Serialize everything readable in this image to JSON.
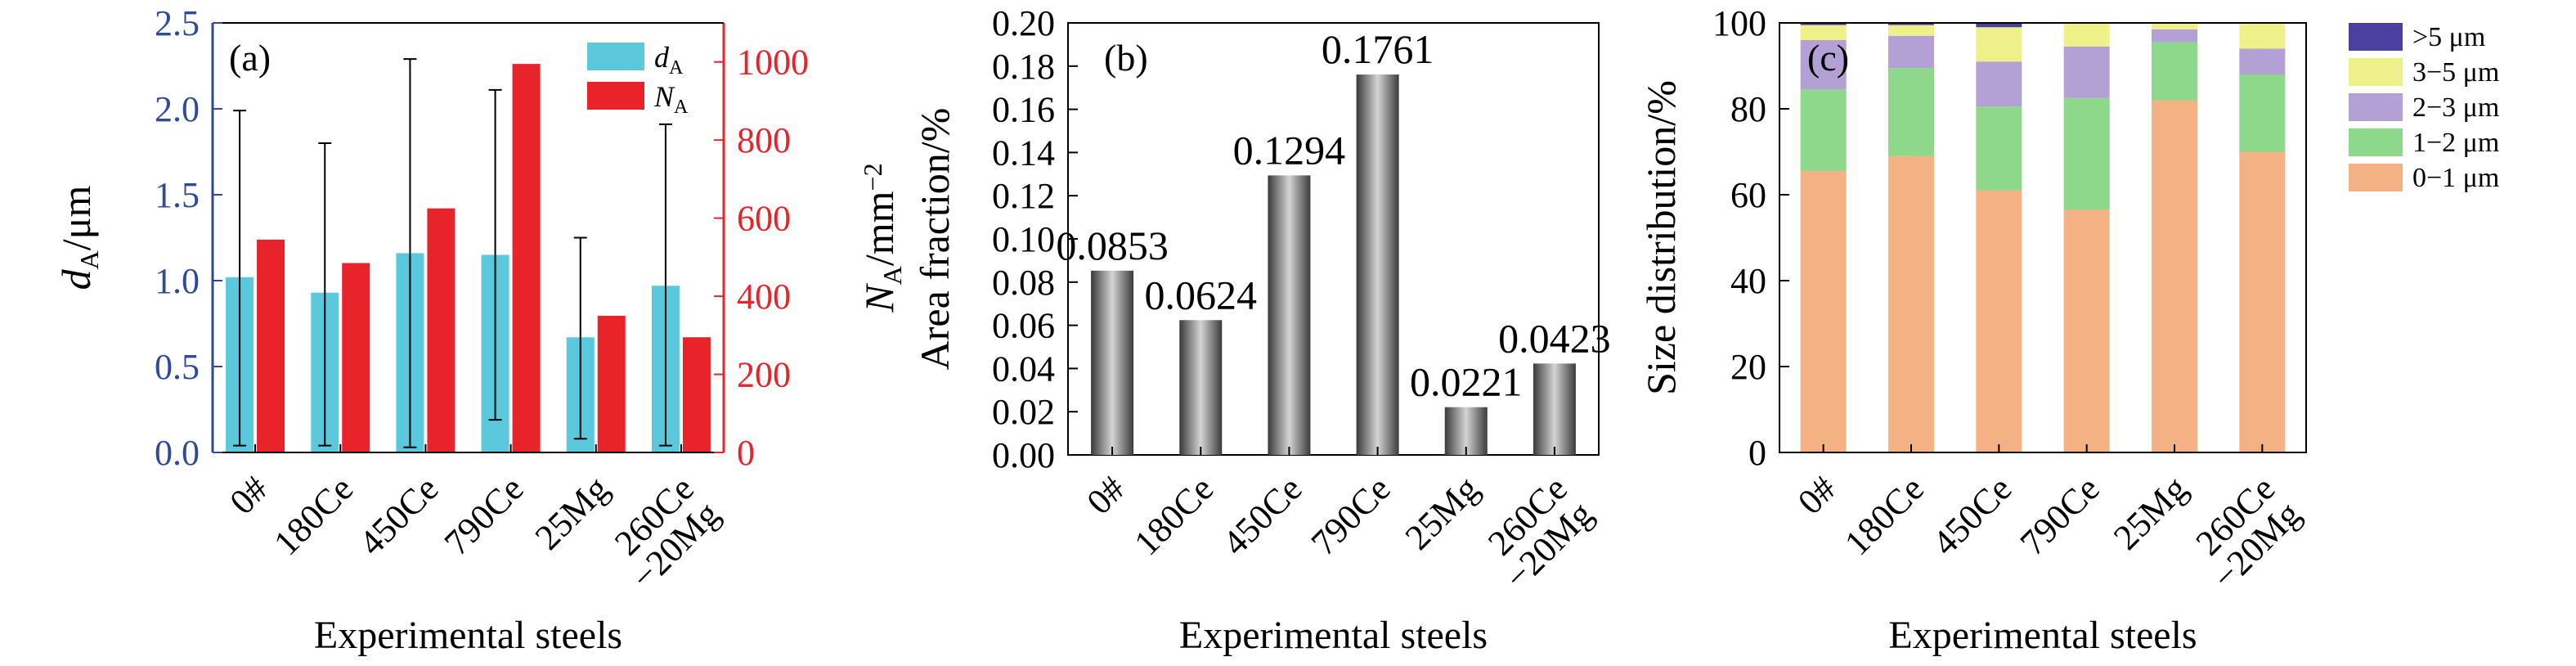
{
  "chart_data": [
    {
      "type": "bar",
      "panel_label": "(a)",
      "categories": [
        "0#",
        "180Ce",
        "450Ce",
        "790Ce",
        "25Mg",
        "260Ce\n−20Mg"
      ],
      "xlabel": "Experimental steels",
      "ylabel": "d_A/μm",
      "ylabel2": "N_A/mm^-2",
      "ylim": [
        0,
        2.5
      ],
      "yticks": [
        "0.0",
        "0.5",
        "1.0",
        "1.5",
        "2.0",
        "2.5"
      ],
      "ylim2": [
        0,
        1100
      ],
      "yticks2": [
        "0",
        "200",
        "400",
        "600",
        "800",
        "1000"
      ],
      "series": [
        {
          "name": "d_A",
          "axis": "left",
          "color": "#5bc8dc",
          "values": [
            1.02,
            0.93,
            1.16,
            1.15,
            0.67,
            0.97
          ],
          "error_low": [
            0.04,
            0.04,
            0.03,
            0.19,
            0.08,
            0.04
          ],
          "error_high": [
            1.99,
            1.8,
            2.29,
            2.11,
            1.25,
            1.91
          ]
        },
        {
          "name": "N_A",
          "axis": "right",
          "color": "#e8232a",
          "values": [
            545,
            485,
            625,
            995,
            350,
            295
          ]
        }
      ],
      "legend": "top-right"
    },
    {
      "type": "bar",
      "panel_label": "(b)",
      "categories": [
        "0#",
        "180Ce",
        "450Ce",
        "790Ce",
        "25Mg",
        "260Ce\n−20Mg"
      ],
      "values": [
        0.0853,
        0.0624,
        0.1294,
        0.1761,
        0.0221,
        0.0423
      ],
      "data_labels": [
        "0.0853",
        "0.0624",
        "0.1294",
        "0.1761",
        "0.0221",
        "0.0423"
      ],
      "xlabel": "Experimental steels",
      "ylabel": "Area fraction/%",
      "ylim": [
        0,
        0.2
      ],
      "yticks": [
        "0.00",
        "0.02",
        "0.04",
        "0.06",
        "0.08",
        "0.10",
        "0.12",
        "0.14",
        "0.16",
        "0.18",
        "0.20"
      ]
    },
    {
      "type": "stacked-bar",
      "panel_label": "(c)",
      "categories": [
        "0#",
        "180Ce",
        "450Ce",
        "790Ce",
        "25Mg",
        "260Ce\n−20Mg"
      ],
      "xlabel": "Experimental steels",
      "ylabel": "Size distribution/%",
      "ylim": [
        0,
        100
      ],
      "yticks": [
        "0",
        "20",
        "40",
        "60",
        "80",
        "100"
      ],
      "legend": "right",
      "series": [
        {
          "name": "0−1 μm",
          "color": "#f4b183",
          "values": [
            65.5,
            69,
            61,
            56.5,
            82,
            70
          ]
        },
        {
          "name": "1−2 μm",
          "color": "#8dd88a",
          "values": [
            19,
            20.5,
            19.5,
            26,
            13.5,
            18
          ]
        },
        {
          "name": "2−3 μm",
          "color": "#b3a1d6",
          "values": [
            11.5,
            7.5,
            10.5,
            12,
            3,
            6
          ]
        },
        {
          "name": "3−5 μm",
          "color": "#eef08a",
          "values": [
            3.5,
            2.5,
            8,
            5.5,
            1.5,
            6
          ]
        },
        {
          "name": ">5 μm",
          "color": "#4b3fa0",
          "values": [
            0.5,
            0.5,
            1,
            0,
            0,
            0
          ]
        }
      ]
    }
  ]
}
